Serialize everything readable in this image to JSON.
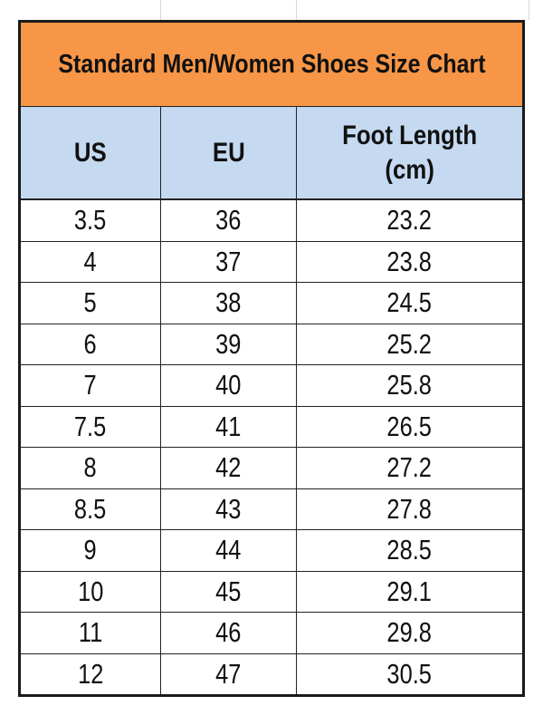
{
  "title": "Standard Men/Women Shoes Size Chart",
  "headers": [
    "US",
    "EU",
    "Foot Length",
    "(cm)"
  ],
  "rows": [
    [
      "3.5",
      "36",
      "23.2"
    ],
    [
      "4",
      "37",
      "23.8"
    ],
    [
      "5",
      "38",
      "24.5"
    ],
    [
      "6",
      "39",
      "25.2"
    ],
    [
      "7",
      "40",
      "25.8"
    ],
    [
      "7.5",
      "41",
      "26.5"
    ],
    [
      "8",
      "42",
      "27.2"
    ],
    [
      "8.5",
      "43",
      "27.8"
    ],
    [
      "9",
      "44",
      "28.5"
    ],
    [
      "10",
      "45",
      "29.1"
    ],
    [
      "11",
      "46",
      "29.8"
    ],
    [
      "12",
      "47",
      "30.5"
    ]
  ],
  "colors": {
    "title_bg": "#f79646",
    "header_bg": "#c5d9f1"
  }
}
